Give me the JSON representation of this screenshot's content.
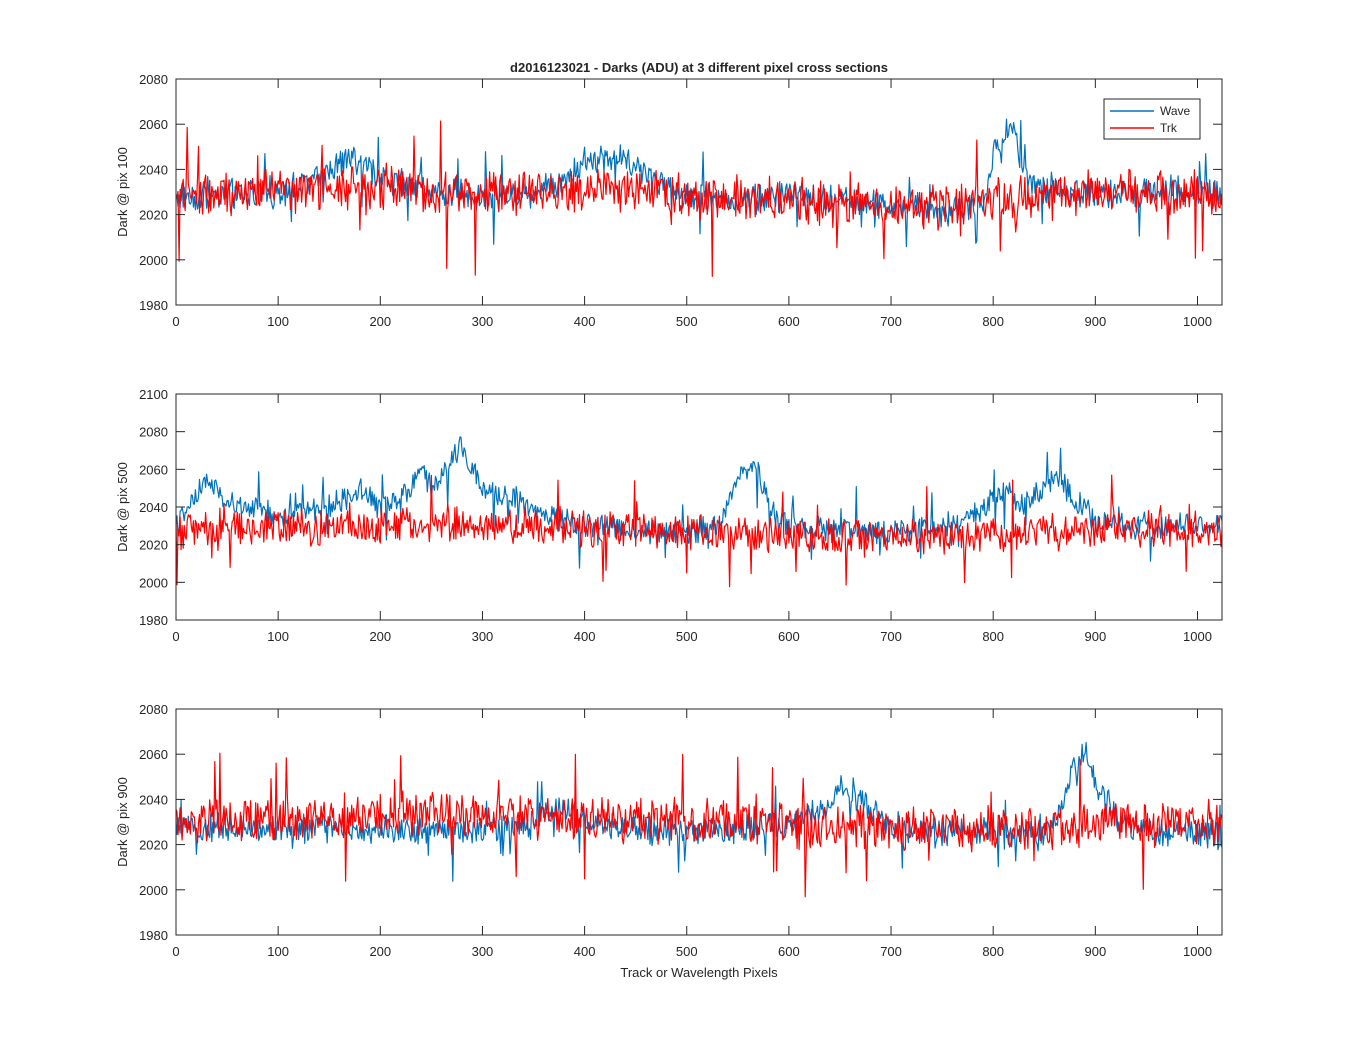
{
  "figure": {
    "title": "d2016123021 - Darks (ADU) at 3 different pixel cross sections"
  },
  "colors": {
    "wave": "#0072BD",
    "trk": "#FF0000",
    "axis": "#262626"
  },
  "chart_data": [
    {
      "type": "line",
      "title": "d2016123021 - Darks (ADU) at 3 different pixel cross sections",
      "xlabel": "",
      "ylabel": "Dark @ pix 100",
      "xlim": [
        0,
        1024
      ],
      "ylim": [
        1980,
        2080
      ],
      "xticks": [
        "0",
        "100",
        "200",
        "300",
        "400",
        "500",
        "600",
        "700",
        "800",
        "900",
        "1000"
      ],
      "yticks": [
        "1980",
        "2000",
        "2020",
        "2040",
        "2060",
        "2080"
      ],
      "legend": {
        "position": "top-right",
        "entries": [
          "Wave",
          "Trk"
        ]
      },
      "series": [
        {
          "name": "Wave",
          "color": "#0072BD",
          "x": [
            0,
            50,
            100,
            130,
            170,
            200,
            250,
            300,
            350,
            380,
            400,
            420,
            450,
            480,
            500,
            550,
            600,
            650,
            700,
            750,
            790,
            800,
            810,
            820,
            830,
            850,
            900,
            950,
            1000,
            1024
          ],
          "y": [
            2028,
            2029,
            2030,
            2034,
            2045,
            2036,
            2031,
            2028,
            2030,
            2036,
            2043,
            2046,
            2042,
            2032,
            2029,
            2026,
            2029,
            2026,
            2024,
            2021,
            2025,
            2045,
            2057,
            2060,
            2038,
            2030,
            2029,
            2031,
            2030,
            2028
          ]
        },
        {
          "name": "Trk",
          "color": "#FF0000",
          "x": [
            0,
            50,
            100,
            150,
            200,
            250,
            300,
            350,
            400,
            450,
            500,
            550,
            600,
            650,
            700,
            750,
            800,
            850,
            900,
            950,
            1000,
            1024
          ],
          "y": [
            2028,
            2029,
            2030,
            2031,
            2033,
            2030,
            2029,
            2030,
            2031,
            2030,
            2028,
            2027,
            2026,
            2025,
            2024,
            2024,
            2026,
            2028,
            2029,
            2030,
            2030,
            2029
          ]
        }
      ]
    },
    {
      "type": "line",
      "title": "",
      "xlabel": "",
      "ylabel": "Dark @ pix 500",
      "xlim": [
        0,
        1024
      ],
      "ylim": [
        1980,
        2100
      ],
      "xticks": [
        "0",
        "100",
        "200",
        "300",
        "400",
        "500",
        "600",
        "700",
        "800",
        "900",
        "1000"
      ],
      "yticks": [
        "1980",
        "2000",
        "2020",
        "2040",
        "2060",
        "2080",
        "2100"
      ],
      "series": [
        {
          "name": "Wave",
          "color": "#0072BD",
          "x": [
            0,
            20,
            30,
            50,
            100,
            150,
            180,
            200,
            230,
            240,
            250,
            270,
            280,
            300,
            330,
            350,
            400,
            450,
            500,
            530,
            550,
            560,
            570,
            580,
            600,
            650,
            700,
            750,
            790,
            810,
            830,
            850,
            860,
            880,
            900,
            950,
            1000,
            1024
          ],
          "y": [
            2030,
            2045,
            2055,
            2042,
            2035,
            2040,
            2050,
            2040,
            2050,
            2062,
            2048,
            2065,
            2072,
            2048,
            2045,
            2038,
            2030,
            2028,
            2026,
            2030,
            2055,
            2062,
            2060,
            2040,
            2030,
            2028,
            2026,
            2030,
            2038,
            2050,
            2042,
            2050,
            2058,
            2045,
            2032,
            2029,
            2032,
            2030
          ]
        },
        {
          "name": "Trk",
          "color": "#FF0000",
          "x": [
            0,
            50,
            100,
            150,
            200,
            250,
            300,
            350,
            400,
            450,
            500,
            550,
            600,
            650,
            700,
            750,
            800,
            850,
            900,
            950,
            1000,
            1024
          ],
          "y": [
            2028,
            2028,
            2029,
            2029,
            2030,
            2031,
            2030,
            2030,
            2029,
            2028,
            2027,
            2026,
            2025,
            2024,
            2023,
            2024,
            2026,
            2027,
            2028,
            2028,
            2029,
            2028
          ]
        }
      ]
    },
    {
      "type": "line",
      "title": "",
      "xlabel": "Track or Wavelength Pixels",
      "ylabel": "Dark @ pix 900",
      "xlim": [
        0,
        1024
      ],
      "ylim": [
        1980,
        2080
      ],
      "xticks": [
        "0",
        "100",
        "200",
        "300",
        "400",
        "500",
        "600",
        "700",
        "800",
        "900",
        "1000"
      ],
      "yticks": [
        "1980",
        "2000",
        "2020",
        "2040",
        "2060",
        "2080"
      ],
      "series": [
        {
          "name": "Wave",
          "color": "#0072BD",
          "x": [
            0,
            50,
            100,
            150,
            200,
            250,
            300,
            350,
            380,
            400,
            450,
            500,
            550,
            600,
            640,
            650,
            660,
            680,
            700,
            750,
            800,
            850,
            870,
            880,
            890,
            900,
            920,
            950,
            1000,
            1024
          ],
          "y": [
            2026,
            2027,
            2027,
            2028,
            2027,
            2025,
            2026,
            2030,
            2036,
            2030,
            2027,
            2026,
            2027,
            2028,
            2040,
            2046,
            2044,
            2035,
            2028,
            2025,
            2025,
            2024,
            2038,
            2056,
            2060,
            2050,
            2032,
            2026,
            2025,
            2024
          ]
        },
        {
          "name": "Trk",
          "color": "#FF0000",
          "x": [
            0,
            50,
            100,
            150,
            200,
            250,
            300,
            350,
            400,
            450,
            500,
            550,
            600,
            650,
            700,
            750,
            800,
            850,
            900,
            950,
            1000,
            1024
          ],
          "y": [
            2030,
            2030,
            2031,
            2032,
            2033,
            2034,
            2033,
            2032,
            2031,
            2030,
            2030,
            2029,
            2028,
            2028,
            2027,
            2027,
            2027,
            2028,
            2029,
            2029,
            2030,
            2030
          ]
        }
      ]
    }
  ]
}
